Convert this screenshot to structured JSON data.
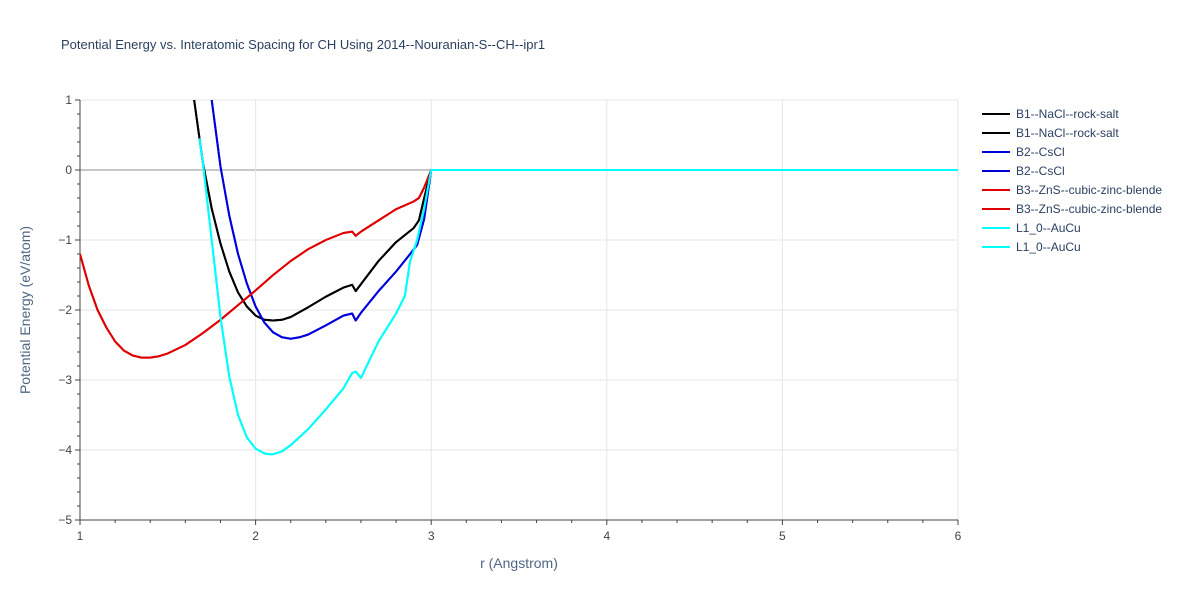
{
  "chart_data": {
    "type": "line",
    "title": "Potential Energy vs. Interatomic Spacing for CH Using 2014--Nouranian-S--CH--ipr1",
    "xlabel": "r (Angstrom)",
    "ylabel": "Potential Energy (eV/atom)",
    "xlim": [
      1,
      6
    ],
    "ylim": [
      -5,
      1
    ],
    "xticks": [
      "1",
      "2",
      "3",
      "4",
      "5",
      "6"
    ],
    "yticks": [
      "1",
      "0",
      "−1",
      "−2",
      "−3",
      "−4",
      "−5"
    ],
    "grid": true,
    "legend_position": "right",
    "series": [
      {
        "name": "B1--NaCl--rock-salt",
        "color": "#000000",
        "x": [
          1.65,
          1.7,
          1.75,
          1.8,
          1.85,
          1.9,
          1.95,
          2.0,
          2.05,
          2.1,
          2.15,
          2.2,
          2.3,
          2.4,
          2.5,
          2.55,
          2.57,
          2.6,
          2.7,
          2.8,
          2.9,
          2.93,
          2.96,
          3.0,
          3.5,
          4.0,
          5.0,
          6.0
        ],
        "y": [
          1.0,
          0.1,
          -0.55,
          -1.05,
          -1.45,
          -1.75,
          -1.95,
          -2.08,
          -2.14,
          -2.15,
          -2.14,
          -2.1,
          -1.96,
          -1.81,
          -1.68,
          -1.64,
          -1.73,
          -1.63,
          -1.3,
          -1.03,
          -0.83,
          -0.72,
          -0.4,
          0.0,
          0.0,
          0.0,
          0.0,
          0.0
        ]
      },
      {
        "name": "B1--NaCl--rock-salt",
        "color": "#000000",
        "x": [
          1.65,
          1.7,
          1.75,
          1.8,
          1.85,
          1.9,
          1.95,
          2.0,
          2.05,
          2.1,
          2.15,
          2.2,
          2.3,
          2.4,
          2.5,
          2.55,
          2.57,
          2.6,
          2.7,
          2.8,
          2.9,
          2.93,
          2.96,
          3.0,
          3.5,
          4.0,
          5.0,
          6.0
        ],
        "y": [
          1.0,
          0.1,
          -0.55,
          -1.05,
          -1.45,
          -1.75,
          -1.95,
          -2.08,
          -2.14,
          -2.15,
          -2.14,
          -2.1,
          -1.96,
          -1.81,
          -1.68,
          -1.64,
          -1.73,
          -1.63,
          -1.3,
          -1.03,
          -0.83,
          -0.72,
          -0.4,
          0.0,
          0.0,
          0.0,
          0.0,
          0.0
        ]
      },
      {
        "name": "B2--CsCl",
        "color": "#0000dd",
        "x": [
          1.75,
          1.8,
          1.85,
          1.9,
          1.95,
          2.0,
          2.05,
          2.1,
          2.15,
          2.2,
          2.25,
          2.3,
          2.4,
          2.5,
          2.55,
          2.57,
          2.6,
          2.7,
          2.8,
          2.88,
          2.92,
          2.96,
          3.0,
          3.5,
          4.0,
          5.0,
          6.0
        ],
        "y": [
          1.0,
          0.05,
          -0.65,
          -1.2,
          -1.62,
          -1.95,
          -2.18,
          -2.32,
          -2.39,
          -2.41,
          -2.39,
          -2.35,
          -2.22,
          -2.08,
          -2.05,
          -2.15,
          -2.04,
          -1.73,
          -1.45,
          -1.2,
          -1.07,
          -0.7,
          0.0,
          0.0,
          0.0,
          0.0,
          0.0
        ]
      },
      {
        "name": "B2--CsCl",
        "color": "#0000dd",
        "x": [
          1.75,
          1.8,
          1.85,
          1.9,
          1.95,
          2.0,
          2.05,
          2.1,
          2.15,
          2.2,
          2.25,
          2.3,
          2.4,
          2.5,
          2.55,
          2.57,
          2.6,
          2.7,
          2.8,
          2.88,
          2.92,
          2.96,
          3.0,
          3.5,
          4.0,
          5.0,
          6.0
        ],
        "y": [
          1.0,
          0.05,
          -0.65,
          -1.2,
          -1.62,
          -1.95,
          -2.18,
          -2.32,
          -2.39,
          -2.41,
          -2.39,
          -2.35,
          -2.22,
          -2.08,
          -2.05,
          -2.15,
          -2.04,
          -1.73,
          -1.45,
          -1.2,
          -1.07,
          -0.7,
          0.0,
          0.0,
          0.0,
          0.0,
          0.0
        ]
      },
      {
        "name": "B3--ZnS--cubic-zinc-blende",
        "color": "#e00000",
        "x": [
          1.0,
          1.05,
          1.1,
          1.15,
          1.2,
          1.25,
          1.3,
          1.35,
          1.4,
          1.45,
          1.5,
          1.6,
          1.7,
          1.8,
          1.9,
          2.0,
          2.1,
          2.2,
          2.3,
          2.4,
          2.5,
          2.55,
          2.57,
          2.6,
          2.7,
          2.8,
          2.9,
          2.93,
          2.96,
          3.0,
          3.5,
          4.0,
          5.0,
          6.0
        ],
        "y": [
          -1.2,
          -1.65,
          -2.0,
          -2.25,
          -2.45,
          -2.58,
          -2.65,
          -2.68,
          -2.68,
          -2.66,
          -2.62,
          -2.5,
          -2.33,
          -2.14,
          -1.93,
          -1.72,
          -1.5,
          -1.3,
          -1.13,
          -1.0,
          -0.9,
          -0.88,
          -0.94,
          -0.88,
          -0.72,
          -0.56,
          -0.45,
          -0.4,
          -0.25,
          0.0,
          0.0,
          0.0,
          0.0,
          0.0
        ]
      },
      {
        "name": "B3--ZnS--cubic-zinc-blende",
        "color": "#e00000",
        "x": [
          1.0,
          1.05,
          1.1,
          1.15,
          1.2,
          1.25,
          1.3,
          1.35,
          1.4,
          1.45,
          1.5,
          1.6,
          1.7,
          1.8,
          1.9,
          2.0,
          2.1,
          2.2,
          2.3,
          2.4,
          2.5,
          2.55,
          2.57,
          2.6,
          2.7,
          2.8,
          2.9,
          2.93,
          2.96,
          3.0,
          3.5,
          4.0,
          5.0,
          6.0
        ],
        "y": [
          -1.2,
          -1.65,
          -2.0,
          -2.25,
          -2.45,
          -2.58,
          -2.65,
          -2.68,
          -2.68,
          -2.66,
          -2.62,
          -2.5,
          -2.33,
          -2.14,
          -1.93,
          -1.72,
          -1.5,
          -1.3,
          -1.13,
          -1.0,
          -0.9,
          -0.88,
          -0.94,
          -0.88,
          -0.72,
          -0.56,
          -0.45,
          -0.4,
          -0.25,
          0.0,
          0.0,
          0.0,
          0.0,
          0.0
        ]
      },
      {
        "name": "L1_0--AuCu",
        "color": "#00ffff",
        "x": [
          1.68,
          1.7,
          1.75,
          1.8,
          1.85,
          1.9,
          1.95,
          2.0,
          2.05,
          2.08,
          2.1,
          2.15,
          2.2,
          2.3,
          2.4,
          2.5,
          2.55,
          2.57,
          2.6,
          2.7,
          2.8,
          2.85,
          2.88,
          2.92,
          2.96,
          3.0,
          3.5,
          4.0,
          5.0,
          6.0
        ],
        "y": [
          0.45,
          0.1,
          -1.0,
          -2.1,
          -2.95,
          -3.5,
          -3.82,
          -3.98,
          -4.05,
          -4.06,
          -4.06,
          -4.02,
          -3.93,
          -3.7,
          -3.42,
          -3.12,
          -2.9,
          -2.88,
          -2.97,
          -2.45,
          -2.05,
          -1.8,
          -1.3,
          -1.0,
          -0.55,
          0.0,
          0.0,
          0.0,
          0.0,
          0.0
        ]
      },
      {
        "name": "L1_0--AuCu",
        "color": "#00ffff",
        "x": [
          1.68,
          1.7,
          1.75,
          1.8,
          1.85,
          1.9,
          1.95,
          2.0,
          2.05,
          2.08,
          2.1,
          2.15,
          2.2,
          2.3,
          2.4,
          2.5,
          2.55,
          2.57,
          2.6,
          2.7,
          2.8,
          2.85,
          2.88,
          2.92,
          2.96,
          3.0,
          3.5,
          4.0,
          5.0,
          6.0
        ],
        "y": [
          0.45,
          0.1,
          -1.0,
          -2.1,
          -2.95,
          -3.5,
          -3.82,
          -3.98,
          -4.05,
          -4.06,
          -4.06,
          -4.02,
          -3.93,
          -3.7,
          -3.42,
          -3.12,
          -2.9,
          -2.88,
          -2.97,
          -2.45,
          -2.05,
          -1.8,
          -1.3,
          -1.0,
          -0.55,
          0.0,
          0.0,
          0.0,
          0.0,
          0.0
        ]
      }
    ]
  }
}
